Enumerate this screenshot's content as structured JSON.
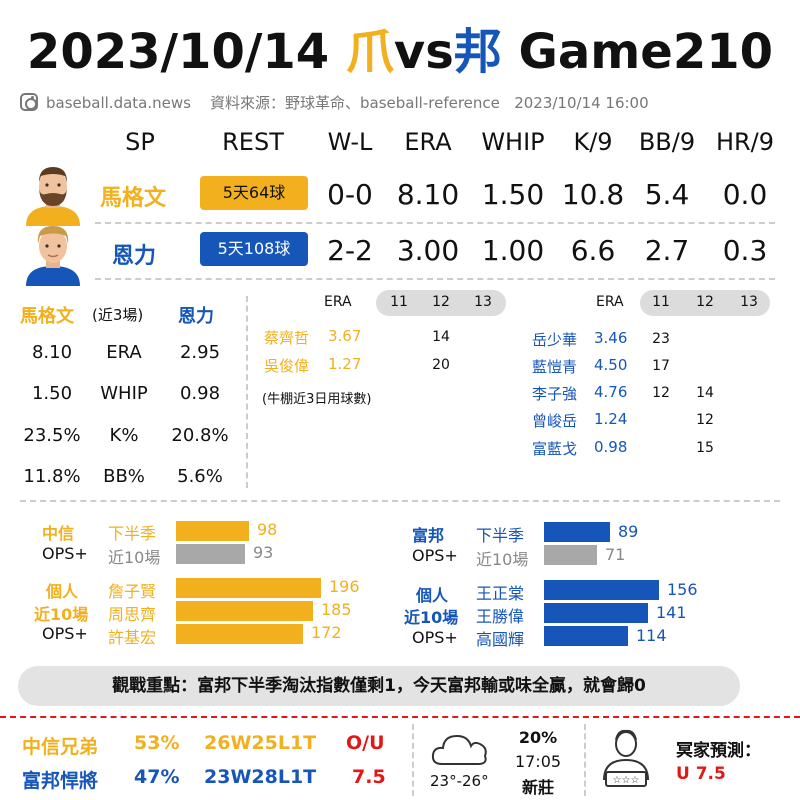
{
  "title": {
    "date": "2023/10/14",
    "team_a": "爪",
    "vs": "vs",
    "team_b": "邦",
    "game": "Game210"
  },
  "subline": {
    "handle": "baseball.data.news",
    "source": "資料來源：野球革命、baseball-reference",
    "datetime": "2023/10/14  16:00"
  },
  "sp_table": {
    "headers": [
      "SP",
      "REST",
      "W-L",
      "ERA",
      "WHIP",
      "K/9",
      "BB/9",
      "HR/9"
    ],
    "rows": [
      {
        "name": "馬格文",
        "rest": "5天64球",
        "wl": "0-0",
        "era": "8.10",
        "whip": "1.50",
        "k9": "10.8",
        "bb9": "5.4",
        "hr9": "0.0"
      },
      {
        "name": "恩力",
        "rest": "5天108球",
        "wl": "2-2",
        "era": "3.00",
        "whip": "1.00",
        "k9": "6.6",
        "bb9": "2.7",
        "hr9": "0.3"
      }
    ]
  },
  "recent": {
    "left_name": "馬格文",
    "span": "(近3場)",
    "right_name": "恩力",
    "rows": [
      {
        "left": "8.10",
        "stat": "ERA",
        "right": "2.95"
      },
      {
        "left": "1.50",
        "stat": "WHIP",
        "right": "0.98"
      },
      {
        "left": "23.5%",
        "stat": "K%",
        "right": "20.8%"
      },
      {
        "left": "11.8%",
        "stat": "BB%",
        "right": "5.6%"
      }
    ]
  },
  "bullpen_a": {
    "era_label": "ERA",
    "days": [
      "11",
      "12",
      "13"
    ],
    "pitchers": [
      {
        "name": "蔡齊哲",
        "era": "3.67",
        "d11": "",
        "d12": "14",
        "d13": ""
      },
      {
        "name": "吳俊偉",
        "era": "1.27",
        "d11": "",
        "d12": "20",
        "d13": ""
      }
    ],
    "note": "(牛棚近3日用球數)"
  },
  "bullpen_b": {
    "era_label": "ERA",
    "days": [
      "11",
      "12",
      "13"
    ],
    "pitchers": [
      {
        "name": "岳少華",
        "era": "3.46",
        "d11": "23",
        "d12": "",
        "d13": ""
      },
      {
        "name": "藍愷青",
        "era": "4.50",
        "d11": "17",
        "d12": "",
        "d13": ""
      },
      {
        "name": "李子強",
        "era": "4.76",
        "d11": "12",
        "d12": "14",
        "d13": ""
      },
      {
        "name": "曾峻岳",
        "era": "1.24",
        "d11": "",
        "d12": "12",
        "d13": ""
      },
      {
        "name": "富藍戈",
        "era": "0.98",
        "d11": "",
        "d12": "15",
        "d13": ""
      }
    ]
  },
  "ops_a": {
    "team": "中信",
    "team_ops": "OPS+",
    "second_half_label": "下半季",
    "second_half": 98,
    "last10_label": "近10場",
    "last10": 93,
    "ind_label1": "個人",
    "ind_label2": "近10場",
    "ind_label3": "OPS+",
    "players": [
      {
        "name": "詹子賢",
        "value": 196
      },
      {
        "name": "周思齊",
        "value": 185
      },
      {
        "name": "許基宏",
        "value": 172
      }
    ]
  },
  "ops_b": {
    "team": "富邦",
    "team_ops": "OPS+",
    "second_half_label": "下半季",
    "second_half": 89,
    "last10_label": "近10場",
    "last10": 71,
    "ind_label1": "個人",
    "ind_label2": "近10場",
    "ind_label3": "OPS+",
    "players": [
      {
        "name": "王正棠",
        "value": 156
      },
      {
        "name": "王勝偉",
        "value": 141
      },
      {
        "name": "高國輝",
        "value": 114
      }
    ]
  },
  "focus": "觀戰重點：富邦下半季淘汰指數僅剩1，今天富邦輸或味全贏，就會歸0",
  "footer": {
    "team_a": "中信兄弟",
    "pct_a": "53%",
    "rec_a": "26W25L1T",
    "team_b": "富邦悍將",
    "pct_b": "47%",
    "rec_b": "23W28L1T",
    "ou_label": "O/U",
    "ou_value": "7.5",
    "temp": "23°-26°",
    "rain": "20%",
    "time": "17:05",
    "venue": "新莊",
    "pred_label": "冥家預測：",
    "pred_value": "U  7.5"
  },
  "colors": {
    "yellow": "#f2b01e",
    "blue": "#1656b8",
    "gray_bar": "#a8a8a8",
    "red": "#e01818"
  },
  "icons": [
    "instagram-icon",
    "bearded-man-avatar",
    "blond-man-avatar",
    "cloud-icon",
    "predictor-avatar-icon"
  ]
}
